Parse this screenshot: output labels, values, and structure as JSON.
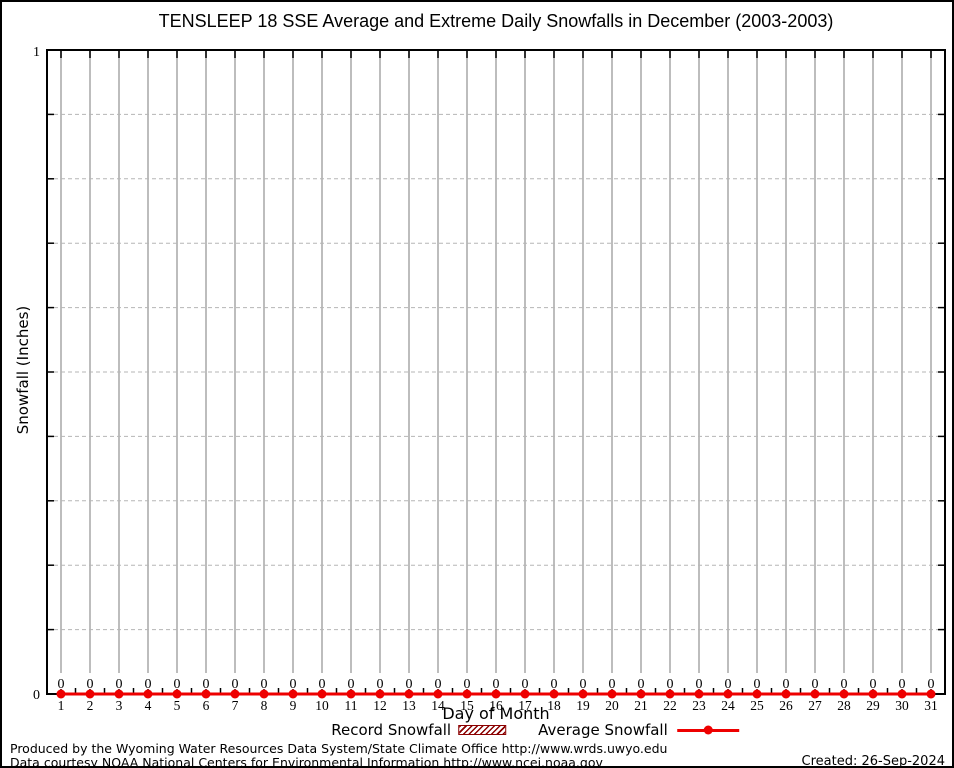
{
  "title": "TENSLEEP 18 SSE Average and Extreme Daily Snowfalls in December (2003-2003)",
  "chart_data": {
    "type": "line",
    "title": "TENSLEEP 18 SSE Average and Extreme Daily Snowfalls in December (2003-2003)",
    "xlabel": "Day of Month",
    "ylabel": "Snowfall (Inches)",
    "x": [
      1,
      2,
      3,
      4,
      5,
      6,
      7,
      8,
      9,
      10,
      11,
      12,
      13,
      14,
      15,
      16,
      17,
      18,
      19,
      20,
      21,
      22,
      23,
      24,
      25,
      26,
      27,
      28,
      29,
      30,
      31
    ],
    "series": [
      {
        "name": "Record Snowfall",
        "style": "hatched-boxes",
        "color": "#8b0000",
        "values": [
          0,
          0,
          0,
          0,
          0,
          0,
          0,
          0,
          0,
          0,
          0,
          0,
          0,
          0,
          0,
          0,
          0,
          0,
          0,
          0,
          0,
          0,
          0,
          0,
          0,
          0,
          0,
          0,
          0,
          0,
          0
        ]
      },
      {
        "name": "Average Snowfall",
        "style": "line-with-points",
        "color": "#ee0000",
        "values": [
          0,
          0,
          0,
          0,
          0,
          0,
          0,
          0,
          0,
          0,
          0,
          0,
          0,
          0,
          0,
          0,
          0,
          0,
          0,
          0,
          0,
          0,
          0,
          0,
          0,
          0,
          0,
          0,
          0,
          0,
          0
        ]
      }
    ],
    "point_labels": [
      "0",
      "0",
      "0",
      "0",
      "0",
      "0",
      "0",
      "0",
      "0",
      "0",
      "0",
      "0",
      "0",
      "0",
      "0",
      "0",
      "0",
      "0",
      "0",
      "0",
      "0",
      "0",
      "0",
      "0",
      "0",
      "0",
      "0",
      "0",
      "0",
      "0",
      "0"
    ],
    "ylim": [
      0,
      1
    ],
    "ytick_labeled": [
      0,
      1
    ],
    "ytick_step": 0.1,
    "grid": true,
    "legend_position": "bottom"
  },
  "legend": {
    "items": [
      {
        "label": "Record Snowfall"
      },
      {
        "label": "Average Snowfall"
      }
    ]
  },
  "footer": {
    "line1": "Produced by the Wyoming Water Resources Data System/State Climate Office http://www.wrds.uwyo.edu",
    "line2": "Data courtesy NOAA National Centers for Environmental Information http://www.ncei.noaa.gov",
    "created": "Created: 26-Sep-2024"
  },
  "colors": {
    "average_red": "#ee0000",
    "record_dark_red": "#8b0000",
    "vertical_grid": "#bdbdbd",
    "horizontal_grid": "#b5b5b5",
    "axis": "#000000",
    "text": "#000000"
  }
}
